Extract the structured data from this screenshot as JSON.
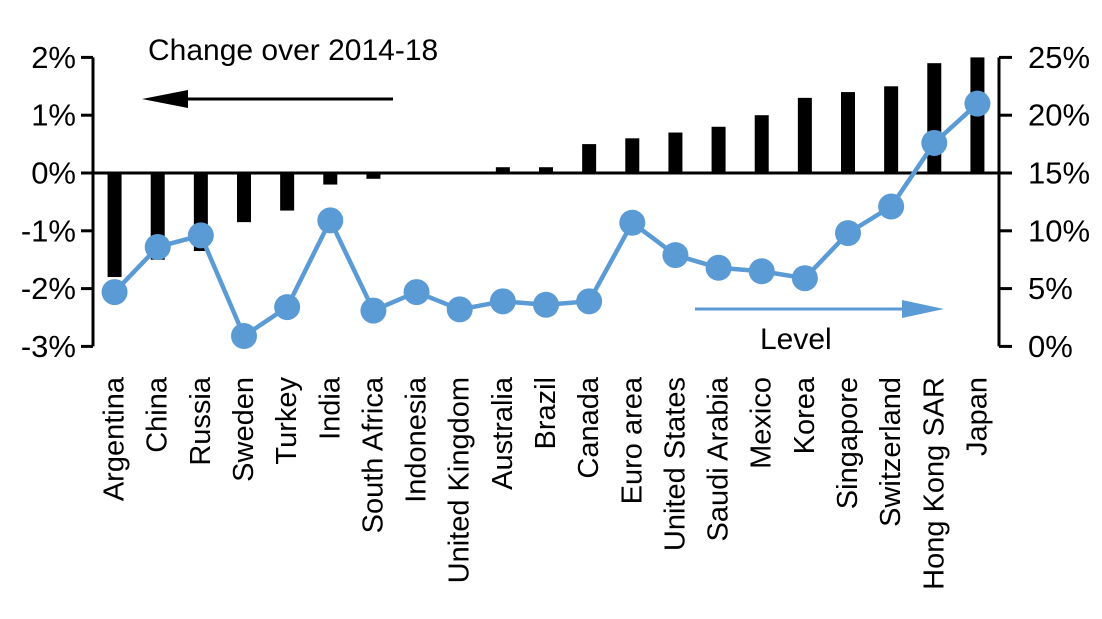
{
  "chart_data": {
    "type": "bar",
    "subtype": "combo-bar-line-dual-axis",
    "categories": [
      "Argentina",
      "China",
      "Russia",
      "Sweden",
      "Turkey",
      "India",
      "South Africa",
      "Indonesia",
      "United Kingdom",
      "Australia",
      "Brazil",
      "Canada",
      "Euro area",
      "United States",
      "Saudi Arabia",
      "Mexico",
      "Korea",
      "Singapore",
      "Switzerland",
      "Hong Kong SAR",
      "Japan"
    ],
    "series": [
      {
        "name": "Change over 2014-18",
        "type": "bar",
        "axis": "left",
        "unit": "%",
        "values": [
          -1.8,
          -1.5,
          -1.35,
          -0.85,
          -0.65,
          -0.2,
          -0.1,
          0,
          0,
          0.1,
          0.1,
          0.5,
          0.6,
          0.7,
          0.8,
          1.0,
          1.3,
          1.4,
          1.5,
          1.9,
          2.0
        ]
      },
      {
        "name": "Level",
        "type": "line",
        "axis": "right",
        "unit": "%",
        "values": [
          4.7,
          8.6,
          9.6,
          0.9,
          3.4,
          10.9,
          3.1,
          4.7,
          3.2,
          3.9,
          3.6,
          3.9,
          10.7,
          7.9,
          6.8,
          6.5,
          5.9,
          9.8,
          12.1,
          17.6,
          21.0
        ]
      }
    ],
    "left_axis": {
      "min": -3,
      "max": 2,
      "tick_values": [
        2,
        1,
        0,
        -1,
        -2,
        -3
      ],
      "tick_labels": [
        "2%",
        "1%",
        "0%",
        "-1%",
        "-2%",
        "-3%"
      ]
    },
    "right_axis": {
      "min": 0,
      "max": 25,
      "tick_values": [
        25,
        20,
        15,
        10,
        5,
        0
      ],
      "tick_labels": [
        "25%",
        "20%",
        "15%",
        "10%",
        "5%",
        "0%"
      ]
    },
    "annotations": {
      "bar_label": {
        "text": "Change over 2014-18",
        "arrow": "left"
      },
      "line_label": {
        "text": "Level",
        "arrow": "right"
      }
    },
    "colors": {
      "bar": "#000000",
      "line": "#5B9BD5",
      "axis": "#000000",
      "text": "#000000"
    },
    "grid": false,
    "legend_position": "none"
  }
}
